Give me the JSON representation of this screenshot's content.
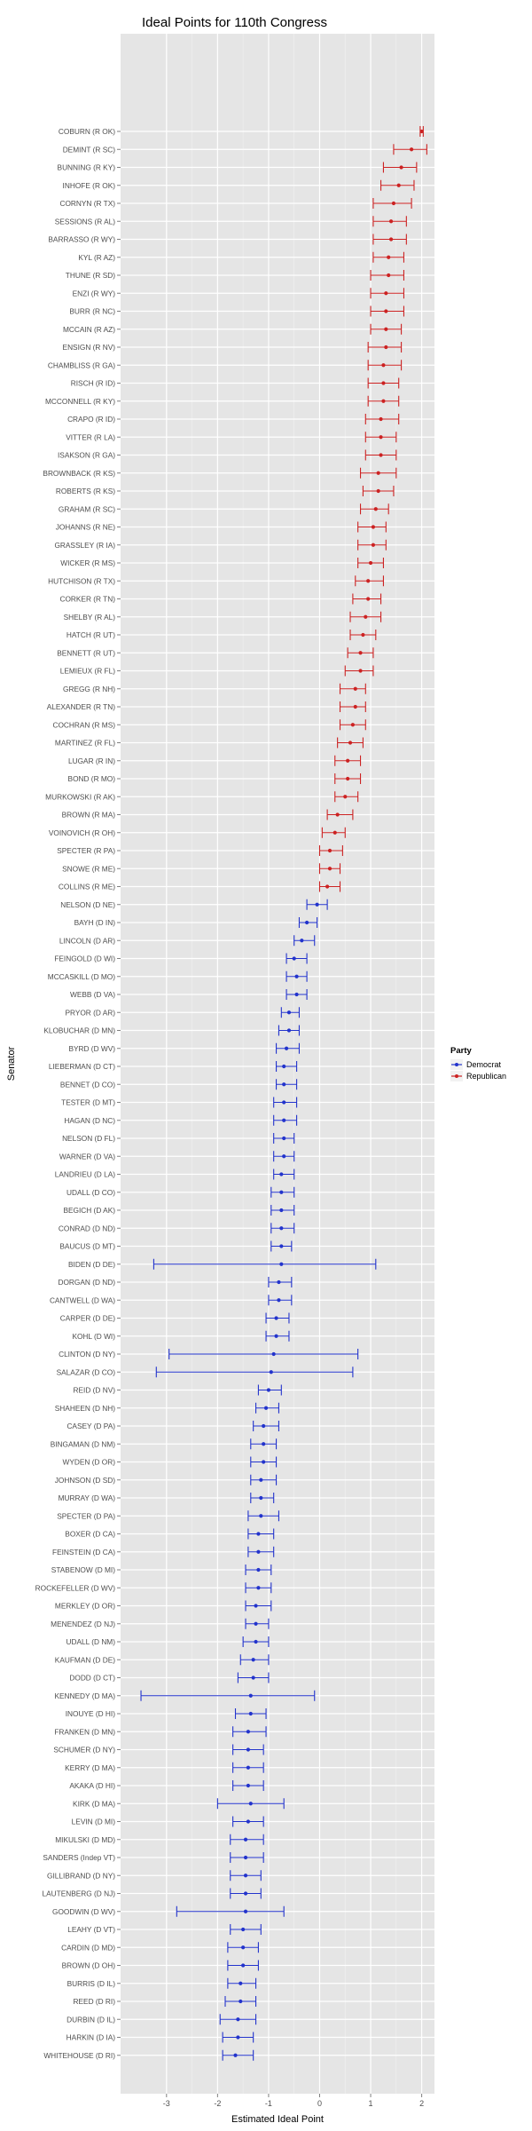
{
  "chart_data": {
    "type": "scatter",
    "title": "Ideal Points for 110th Congress",
    "xlabel": "Estimated Ideal Point",
    "ylabel": "Senator",
    "xlim": [
      -3.9,
      2.25
    ],
    "xticks": [
      -3,
      -2,
      -1,
      0,
      1,
      2
    ],
    "grid": true,
    "legend": {
      "title": "Party",
      "placement": "right",
      "entries": [
        {
          "name": "Democrat",
          "color": "#2233cc"
        },
        {
          "name": "Republican",
          "color": "#cc2222"
        }
      ]
    },
    "colors": {
      "Democrat": "#2233cc",
      "Republican": "#cc2222"
    },
    "points": [
      {
        "label": "COBURN (R OK)",
        "party": "Republican",
        "x": 2.0,
        "lo": 1.97,
        "hi": 2.03
      },
      {
        "label": "DEMINT (R SC)",
        "party": "Republican",
        "x": 1.8,
        "lo": 1.45,
        "hi": 2.1
      },
      {
        "label": "BUNNING (R KY)",
        "party": "Republican",
        "x": 1.6,
        "lo": 1.25,
        "hi": 1.9
      },
      {
        "label": "INHOFE (R OK)",
        "party": "Republican",
        "x": 1.55,
        "lo": 1.2,
        "hi": 1.85
      },
      {
        "label": "CORNYN (R TX)",
        "party": "Republican",
        "x": 1.45,
        "lo": 1.05,
        "hi": 1.8
      },
      {
        "label": "SESSIONS (R AL)",
        "party": "Republican",
        "x": 1.4,
        "lo": 1.05,
        "hi": 1.7
      },
      {
        "label": "BARRASSO (R WY)",
        "party": "Republican",
        "x": 1.4,
        "lo": 1.05,
        "hi": 1.7
      },
      {
        "label": "KYL (R AZ)",
        "party": "Republican",
        "x": 1.35,
        "lo": 1.05,
        "hi": 1.65
      },
      {
        "label": "THUNE (R SD)",
        "party": "Republican",
        "x": 1.35,
        "lo": 1.0,
        "hi": 1.65
      },
      {
        "label": "ENZI (R WY)",
        "party": "Republican",
        "x": 1.3,
        "lo": 1.0,
        "hi": 1.65
      },
      {
        "label": "BURR (R NC)",
        "party": "Republican",
        "x": 1.3,
        "lo": 1.0,
        "hi": 1.65
      },
      {
        "label": "MCCAIN (R AZ)",
        "party": "Republican",
        "x": 1.3,
        "lo": 1.0,
        "hi": 1.6
      },
      {
        "label": "ENSIGN (R NV)",
        "party": "Republican",
        "x": 1.3,
        "lo": 0.95,
        "hi": 1.6
      },
      {
        "label": "CHAMBLISS (R GA)",
        "party": "Republican",
        "x": 1.25,
        "lo": 0.95,
        "hi": 1.6
      },
      {
        "label": "RISCH (R ID)",
        "party": "Republican",
        "x": 1.25,
        "lo": 0.95,
        "hi": 1.55
      },
      {
        "label": "MCCONNELL (R KY)",
        "party": "Republican",
        "x": 1.25,
        "lo": 0.95,
        "hi": 1.55
      },
      {
        "label": "CRAPO (R ID)",
        "party": "Republican",
        "x": 1.2,
        "lo": 0.9,
        "hi": 1.55
      },
      {
        "label": "VITTER (R LA)",
        "party": "Republican",
        "x": 1.2,
        "lo": 0.9,
        "hi": 1.5
      },
      {
        "label": "ISAKSON (R GA)",
        "party": "Republican",
        "x": 1.2,
        "lo": 0.9,
        "hi": 1.5
      },
      {
        "label": "BROWNBACK (R KS)",
        "party": "Republican",
        "x": 1.15,
        "lo": 0.8,
        "hi": 1.5
      },
      {
        "label": "ROBERTS (R KS)",
        "party": "Republican",
        "x": 1.15,
        "lo": 0.85,
        "hi": 1.45
      },
      {
        "label": "GRAHAM (R SC)",
        "party": "Republican",
        "x": 1.1,
        "lo": 0.8,
        "hi": 1.35
      },
      {
        "label": "JOHANNS (R NE)",
        "party": "Republican",
        "x": 1.05,
        "lo": 0.75,
        "hi": 1.3
      },
      {
        "label": "GRASSLEY (R IA)",
        "party": "Republican",
        "x": 1.05,
        "lo": 0.75,
        "hi": 1.3
      },
      {
        "label": "WICKER (R MS)",
        "party": "Republican",
        "x": 1.0,
        "lo": 0.75,
        "hi": 1.25
      },
      {
        "label": "HUTCHISON (R TX)",
        "party": "Republican",
        "x": 0.95,
        "lo": 0.7,
        "hi": 1.25
      },
      {
        "label": "CORKER (R TN)",
        "party": "Republican",
        "x": 0.95,
        "lo": 0.65,
        "hi": 1.2
      },
      {
        "label": "SHELBY (R AL)",
        "party": "Republican",
        "x": 0.9,
        "lo": 0.6,
        "hi": 1.2
      },
      {
        "label": "HATCH (R UT)",
        "party": "Republican",
        "x": 0.85,
        "lo": 0.6,
        "hi": 1.1
      },
      {
        "label": "BENNETT (R UT)",
        "party": "Republican",
        "x": 0.8,
        "lo": 0.55,
        "hi": 1.05
      },
      {
        "label": "LEMIEUX (R FL)",
        "party": "Republican",
        "x": 0.8,
        "lo": 0.5,
        "hi": 1.05
      },
      {
        "label": "GREGG (R NH)",
        "party": "Republican",
        "x": 0.7,
        "lo": 0.4,
        "hi": 0.9
      },
      {
        "label": "ALEXANDER (R TN)",
        "party": "Republican",
        "x": 0.7,
        "lo": 0.4,
        "hi": 0.9
      },
      {
        "label": "COCHRAN (R MS)",
        "party": "Republican",
        "x": 0.65,
        "lo": 0.4,
        "hi": 0.9
      },
      {
        "label": "MARTINEZ (R FL)",
        "party": "Republican",
        "x": 0.6,
        "lo": 0.35,
        "hi": 0.85
      },
      {
        "label": "LUGAR (R IN)",
        "party": "Republican",
        "x": 0.55,
        "lo": 0.3,
        "hi": 0.8
      },
      {
        "label": "BOND (R MO)",
        "party": "Republican",
        "x": 0.55,
        "lo": 0.3,
        "hi": 0.8
      },
      {
        "label": "MURKOWSKI (R AK)",
        "party": "Republican",
        "x": 0.5,
        "lo": 0.3,
        "hi": 0.75
      },
      {
        "label": "BROWN (R MA)",
        "party": "Republican",
        "x": 0.35,
        "lo": 0.15,
        "hi": 0.65
      },
      {
        "label": "VOINOVICH (R OH)",
        "party": "Republican",
        "x": 0.3,
        "lo": 0.05,
        "hi": 0.5
      },
      {
        "label": "SPECTER (R PA)",
        "party": "Republican",
        "x": 0.2,
        "lo": 0.0,
        "hi": 0.45
      },
      {
        "label": "SNOWE (R ME)",
        "party": "Republican",
        "x": 0.2,
        "lo": 0.0,
        "hi": 0.4
      },
      {
        "label": "COLLINS (R ME)",
        "party": "Republican",
        "x": 0.15,
        "lo": 0.0,
        "hi": 0.4
      },
      {
        "label": "NELSON (D NE)",
        "party": "Democrat",
        "x": -0.05,
        "lo": -0.25,
        "hi": 0.15
      },
      {
        "label": "BAYH (D IN)",
        "party": "Democrat",
        "x": -0.25,
        "lo": -0.4,
        "hi": -0.05
      },
      {
        "label": "LINCOLN (D AR)",
        "party": "Democrat",
        "x": -0.35,
        "lo": -0.5,
        "hi": -0.1
      },
      {
        "label": "FEINGOLD (D WI)",
        "party": "Democrat",
        "x": -0.5,
        "lo": -0.65,
        "hi": -0.25
      },
      {
        "label": "MCCASKILL (D MO)",
        "party": "Democrat",
        "x": -0.45,
        "lo": -0.65,
        "hi": -0.25
      },
      {
        "label": "WEBB (D VA)",
        "party": "Democrat",
        "x": -0.45,
        "lo": -0.65,
        "hi": -0.25
      },
      {
        "label": "PRYOR (D AR)",
        "party": "Democrat",
        "x": -0.6,
        "lo": -0.75,
        "hi": -0.4
      },
      {
        "label": "KLOBUCHAR (D MN)",
        "party": "Democrat",
        "x": -0.6,
        "lo": -0.8,
        "hi": -0.4
      },
      {
        "label": "BYRD (D WV)",
        "party": "Democrat",
        "x": -0.65,
        "lo": -0.85,
        "hi": -0.4
      },
      {
        "label": "LIEBERMAN (D CT)",
        "party": "Democrat",
        "x": -0.7,
        "lo": -0.85,
        "hi": -0.45
      },
      {
        "label": "BENNET (D CO)",
        "party": "Democrat",
        "x": -0.7,
        "lo": -0.85,
        "hi": -0.45
      },
      {
        "label": "TESTER (D MT)",
        "party": "Democrat",
        "x": -0.7,
        "lo": -0.9,
        "hi": -0.45
      },
      {
        "label": "HAGAN (D NC)",
        "party": "Democrat",
        "x": -0.7,
        "lo": -0.9,
        "hi": -0.45
      },
      {
        "label": "NELSON (D FL)",
        "party": "Democrat",
        "x": -0.7,
        "lo": -0.9,
        "hi": -0.5
      },
      {
        "label": "WARNER (D VA)",
        "party": "Democrat",
        "x": -0.7,
        "lo": -0.9,
        "hi": -0.5
      },
      {
        "label": "LANDRIEU (D LA)",
        "party": "Democrat",
        "x": -0.75,
        "lo": -0.9,
        "hi": -0.5
      },
      {
        "label": "UDALL (D CO)",
        "party": "Democrat",
        "x": -0.75,
        "lo": -0.95,
        "hi": -0.5
      },
      {
        "label": "BEGICH (D AK)",
        "party": "Democrat",
        "x": -0.75,
        "lo": -0.95,
        "hi": -0.5
      },
      {
        "label": "CONRAD (D ND)",
        "party": "Democrat",
        "x": -0.75,
        "lo": -0.95,
        "hi": -0.5
      },
      {
        "label": "BAUCUS (D MT)",
        "party": "Democrat",
        "x": -0.75,
        "lo": -0.95,
        "hi": -0.55
      },
      {
        "label": "BIDEN (D DE)",
        "party": "Democrat",
        "x": -0.75,
        "lo": -3.25,
        "hi": 1.1
      },
      {
        "label": "DORGAN (D ND)",
        "party": "Democrat",
        "x": -0.8,
        "lo": -1.0,
        "hi": -0.55
      },
      {
        "label": "CANTWELL (D WA)",
        "party": "Democrat",
        "x": -0.8,
        "lo": -1.0,
        "hi": -0.55
      },
      {
        "label": "CARPER (D DE)",
        "party": "Democrat",
        "x": -0.85,
        "lo": -1.05,
        "hi": -0.6
      },
      {
        "label": "KOHL (D WI)",
        "party": "Democrat",
        "x": -0.85,
        "lo": -1.05,
        "hi": -0.6
      },
      {
        "label": "CLINTON (D NY)",
        "party": "Democrat",
        "x": -0.9,
        "lo": -2.95,
        "hi": 0.75
      },
      {
        "label": "SALAZAR (D CO)",
        "party": "Democrat",
        "x": -0.95,
        "lo": -3.2,
        "hi": 0.65
      },
      {
        "label": "REID (D NV)",
        "party": "Democrat",
        "x": -1.0,
        "lo": -1.2,
        "hi": -0.75
      },
      {
        "label": "SHAHEEN (D NH)",
        "party": "Democrat",
        "x": -1.05,
        "lo": -1.25,
        "hi": -0.8
      },
      {
        "label": "CASEY (D PA)",
        "party": "Democrat",
        "x": -1.1,
        "lo": -1.3,
        "hi": -0.8
      },
      {
        "label": "BINGAMAN (D NM)",
        "party": "Democrat",
        "x": -1.1,
        "lo": -1.35,
        "hi": -0.85
      },
      {
        "label": "WYDEN (D OR)",
        "party": "Democrat",
        "x": -1.1,
        "lo": -1.35,
        "hi": -0.85
      },
      {
        "label": "JOHNSON (D SD)",
        "party": "Democrat",
        "x": -1.15,
        "lo": -1.35,
        "hi": -0.85
      },
      {
        "label": "MURRAY (D WA)",
        "party": "Democrat",
        "x": -1.15,
        "lo": -1.35,
        "hi": -0.9
      },
      {
        "label": "SPECTER (D PA)",
        "party": "Democrat",
        "x": -1.15,
        "lo": -1.4,
        "hi": -0.8
      },
      {
        "label": "BOXER (D CA)",
        "party": "Democrat",
        "x": -1.2,
        "lo": -1.4,
        "hi": -0.9
      },
      {
        "label": "FEINSTEIN (D CA)",
        "party": "Democrat",
        "x": -1.2,
        "lo": -1.4,
        "hi": -0.9
      },
      {
        "label": "STABENOW (D MI)",
        "party": "Democrat",
        "x": -1.2,
        "lo": -1.45,
        "hi": -0.95
      },
      {
        "label": "ROCKEFELLER (D WV)",
        "party": "Democrat",
        "x": -1.2,
        "lo": -1.45,
        "hi": -0.95
      },
      {
        "label": "MERKLEY (D OR)",
        "party": "Democrat",
        "x": -1.25,
        "lo": -1.45,
        "hi": -0.95
      },
      {
        "label": "MENENDEZ (D NJ)",
        "party": "Democrat",
        "x": -1.25,
        "lo": -1.45,
        "hi": -1.0
      },
      {
        "label": "UDALL (D NM)",
        "party": "Democrat",
        "x": -1.25,
        "lo": -1.5,
        "hi": -1.0
      },
      {
        "label": "KAUFMAN (D DE)",
        "party": "Democrat",
        "x": -1.3,
        "lo": -1.55,
        "hi": -1.0
      },
      {
        "label": "DODD (D CT)",
        "party": "Democrat",
        "x": -1.3,
        "lo": -1.6,
        "hi": -1.0
      },
      {
        "label": "KENNEDY (D MA)",
        "party": "Democrat",
        "x": -1.35,
        "lo": -3.5,
        "hi": -0.1
      },
      {
        "label": "INOUYE (D HI)",
        "party": "Democrat",
        "x": -1.35,
        "lo": -1.65,
        "hi": -1.05
      },
      {
        "label": "FRANKEN (D MN)",
        "party": "Democrat",
        "x": -1.4,
        "lo": -1.7,
        "hi": -1.05
      },
      {
        "label": "SCHUMER (D NY)",
        "party": "Democrat",
        "x": -1.4,
        "lo": -1.7,
        "hi": -1.1
      },
      {
        "label": "KERRY (D MA)",
        "party": "Democrat",
        "x": -1.4,
        "lo": -1.7,
        "hi": -1.1
      },
      {
        "label": "AKAKA (D HI)",
        "party": "Democrat",
        "x": -1.4,
        "lo": -1.7,
        "hi": -1.1
      },
      {
        "label": "KIRK (D MA)",
        "party": "Democrat",
        "x": -1.35,
        "lo": -2.0,
        "hi": -0.7
      },
      {
        "label": "LEVIN (D MI)",
        "party": "Democrat",
        "x": -1.4,
        "lo": -1.7,
        "hi": -1.1
      },
      {
        "label": "MIKULSKI (D MD)",
        "party": "Democrat",
        "x": -1.45,
        "lo": -1.75,
        "hi": -1.1
      },
      {
        "label": "SANDERS (Indep VT)",
        "party": "Democrat",
        "x": -1.45,
        "lo": -1.75,
        "hi": -1.1
      },
      {
        "label": "GILLIBRAND (D NY)",
        "party": "Democrat",
        "x": -1.45,
        "lo": -1.75,
        "hi": -1.15
      },
      {
        "label": "LAUTENBERG (D NJ)",
        "party": "Democrat",
        "x": -1.45,
        "lo": -1.75,
        "hi": -1.15
      },
      {
        "label": "GOODWIN (D WV)",
        "party": "Democrat",
        "x": -1.45,
        "lo": -2.8,
        "hi": -0.7
      },
      {
        "label": "LEAHY (D VT)",
        "party": "Democrat",
        "x": -1.5,
        "lo": -1.75,
        "hi": -1.15
      },
      {
        "label": "CARDIN (D MD)",
        "party": "Democrat",
        "x": -1.5,
        "lo": -1.8,
        "hi": -1.2
      },
      {
        "label": "BROWN (D OH)",
        "party": "Democrat",
        "x": -1.5,
        "lo": -1.8,
        "hi": -1.2
      },
      {
        "label": "BURRIS (D IL)",
        "party": "Democrat",
        "x": -1.55,
        "lo": -1.8,
        "hi": -1.25
      },
      {
        "label": "REED (D RI)",
        "party": "Democrat",
        "x": -1.55,
        "lo": -1.85,
        "hi": -1.25
      },
      {
        "label": "DURBIN (D IL)",
        "party": "Democrat",
        "x": -1.6,
        "lo": -1.95,
        "hi": -1.25
      },
      {
        "label": "HARKIN (D IA)",
        "party": "Democrat",
        "x": -1.6,
        "lo": -1.9,
        "hi": -1.3
      },
      {
        "label": "WHITEHOUSE (D RI)",
        "party": "Democrat",
        "x": -1.65,
        "lo": -1.9,
        "hi": -1.3
      }
    ]
  }
}
